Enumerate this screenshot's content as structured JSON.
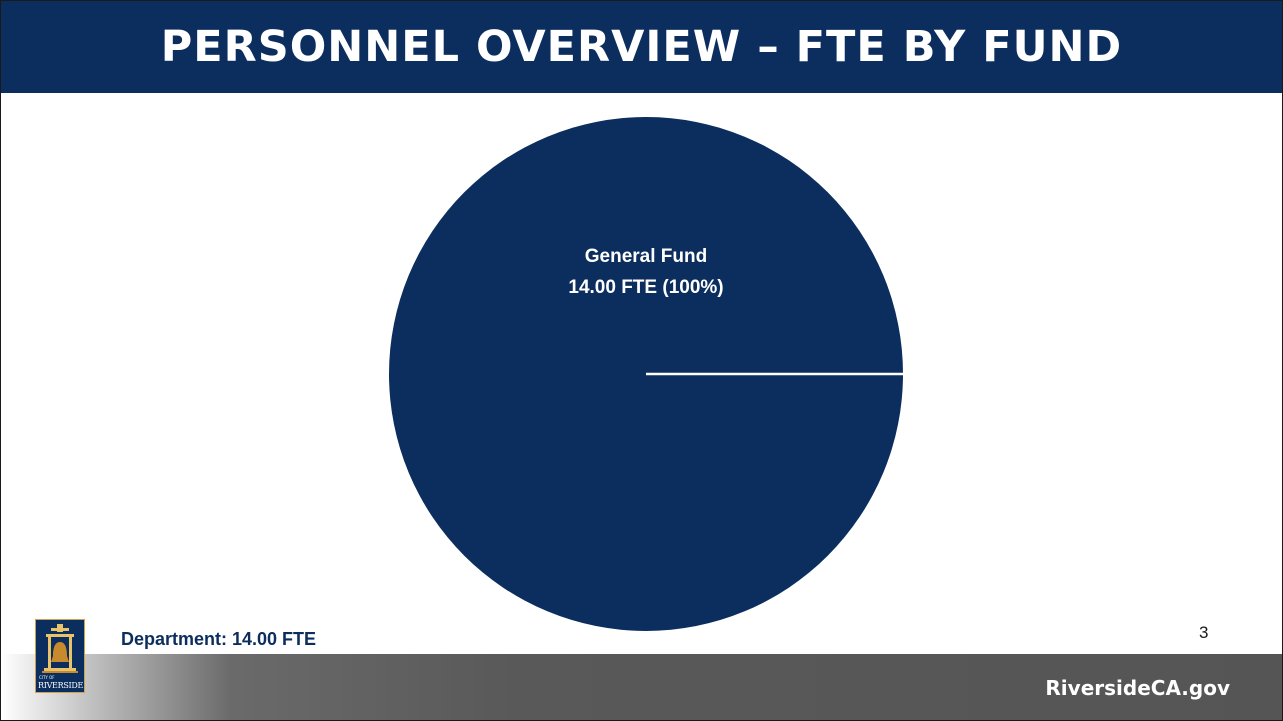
{
  "slide": {
    "title": "PERSONNEL OVERVIEW – FTE BY FUND",
    "department_label": "Department: 14.00 FTE",
    "slide_number": "3",
    "footer_url": "RiversideCA.gov",
    "logo": {
      "city_text": "CITY OF",
      "name_text": "RIVERSIDE",
      "icon": "bell-tower-logo-icon"
    }
  },
  "colors": {
    "title_bar": "#0b2e5e",
    "pie_fill": "#0b2e5e",
    "footer_bar": "#555555",
    "text_on_dark": "#ffffff"
  },
  "chart_data": {
    "type": "pie",
    "title": "",
    "slices": [
      {
        "label": "General Fund",
        "value": 14.0,
        "value_label": "14.00 FTE (100%)",
        "percent": 100
      }
    ]
  }
}
